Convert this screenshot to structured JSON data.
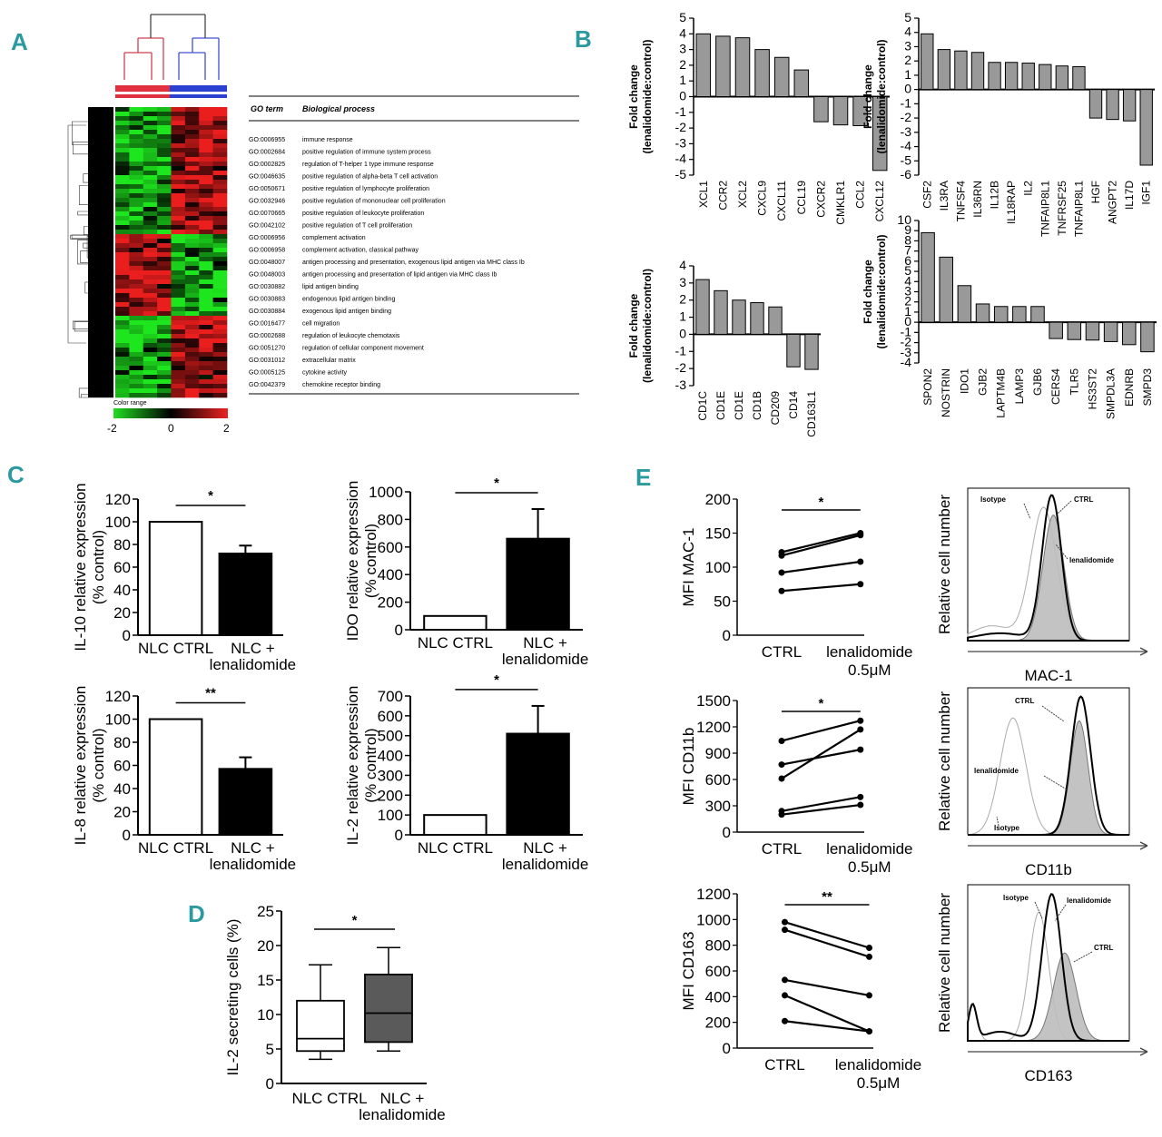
{
  "panel_labels": {
    "a": "A",
    "b": "B",
    "c": "C",
    "d": "D",
    "e": "E"
  },
  "panel_a": {
    "go_header": {
      "term": "GO term",
      "process": "Biological process"
    },
    "go_terms": [
      {
        "id": "GO:0006955",
        "process": "immune response"
      },
      {
        "id": "GO:0002684",
        "process": "positive regulation of immune system process"
      },
      {
        "id": "GO:0002825",
        "process": "regulation of T-helper 1 type immune response"
      },
      {
        "id": "GO:0046635",
        "process": "positive regulation of alpha-beta T cell activation"
      },
      {
        "id": "GO:0050671",
        "process": "positive regulation of lymphocyte proliferation"
      },
      {
        "id": "GO:0032946",
        "process": "positive regulation of mononuclear cell proliferation"
      },
      {
        "id": "GO:0070665",
        "process": "positive regulation of leukocyte proliferation"
      },
      {
        "id": "GO:0042102",
        "process": "positive regulation of T cell proliferation"
      },
      {
        "id": "GO:0006956",
        "process": "complement activation"
      },
      {
        "id": "GO:0006958",
        "process": "complement activation, classical pathway"
      },
      {
        "id": "GO:0048007",
        "process": "antigen processing and presentation, exogenous lipid antigen via MHC class Ib"
      },
      {
        "id": "GO:0048003",
        "process": "antigen processing and presentation of lipid antigen via MHC class Ib"
      },
      {
        "id": "GO:0030882",
        "process": "lipid antigen binding"
      },
      {
        "id": "GO:0030883",
        "process": "endogenous lipid antigen binding"
      },
      {
        "id": "GO:0030884",
        "process": "exogenous lipid antigen binding"
      },
      {
        "id": "GO:0016477",
        "process": "cell migration"
      },
      {
        "id": "GO:0002688",
        "process": "regulation of leukocyte chemotaxis"
      },
      {
        "id": "GO:0051270",
        "process": "regulation of cellular component movement"
      },
      {
        "id": "GO:0031012",
        "process": "extracellular matrix"
      },
      {
        "id": "GO:0005125",
        "process": "cytokine activity"
      },
      {
        "id": "GO:0042379",
        "process": "chemokine receptor binding"
      }
    ],
    "color_range": {
      "title": "Color range",
      "ticks": [
        "-2",
        "0",
        "2"
      ],
      "low": "#22dd22",
      "mid": "#000000",
      "high": "#ee2222"
    },
    "group_colors": {
      "ctrl": "#e03040",
      "len": "#2a40d0"
    }
  },
  "chart_data": [
    {
      "id": "b1",
      "type": "bar",
      "ylabel": "Fold change (lenalidomide:control)",
      "ylim": [
        -5,
        5
      ],
      "categories": [
        "XCL1",
        "CCR2",
        "XCL2",
        "CXCL9",
        "CXCL11",
        "CCL19",
        "CXCR2",
        "CMKLR1",
        "CCL2",
        "CXCL12"
      ],
      "values": [
        4.0,
        3.85,
        3.75,
        3.0,
        2.5,
        1.7,
        -1.6,
        -1.8,
        -1.85,
        -4.7
      ]
    },
    {
      "id": "b2",
      "type": "bar",
      "ylabel": "Fold change (lenalidomide:control)",
      "ylim": [
        -6,
        5
      ],
      "categories": [
        "CSF2",
        "IL3RA",
        "TNFSF4",
        "IL36RN",
        "IL12B",
        "IL18RAP",
        "IL2",
        "TNFAIP8L1",
        "TNFRSF25",
        "TNFAIP8L1",
        "HGF",
        "ANGPT2",
        "IL17D",
        "IGF1"
      ],
      "values": [
        3.9,
        2.8,
        2.7,
        2.6,
        1.9,
        1.9,
        1.85,
        1.75,
        1.65,
        1.6,
        -2.0,
        -2.1,
        -2.2,
        -5.3
      ]
    },
    {
      "id": "b3",
      "type": "bar",
      "ylabel": "Fold change (lenalidomide:control)",
      "ylim": [
        -3,
        4
      ],
      "categories": [
        "CD1C",
        "CD1E",
        "CD1E",
        "CD1B",
        "CD209",
        "CD14",
        "CD163L1"
      ],
      "values": [
        3.2,
        2.55,
        2.0,
        1.85,
        1.6,
        -1.9,
        -2.05
      ]
    },
    {
      "id": "b4",
      "type": "bar",
      "ylabel": "Fold change (lenalidomide:control)",
      "ylim": [
        -4,
        10
      ],
      "categories": [
        "SPON2",
        "NOSTRIN",
        "IDO1",
        "GJB2",
        "LAPTM4B",
        "LAMP3",
        "GJB6",
        "CERS4",
        "TLR5",
        "HS3ST2",
        "SMPDL3A",
        "EDNRB",
        "SMPD3"
      ],
      "values": [
        8.8,
        6.4,
        3.6,
        1.8,
        1.55,
        1.55,
        1.55,
        -1.6,
        -1.7,
        -1.75,
        -1.9,
        -2.2,
        -2.9
      ]
    },
    {
      "id": "c1",
      "type": "bar",
      "ylabel": "IL-10 relative expression (% control)",
      "ylim": [
        0,
        120
      ],
      "categories": [
        "NLC CTRL",
        "NLC + lenalidomide"
      ],
      "values": [
        100,
        72
      ],
      "errors": [
        0,
        7
      ],
      "significance": "*"
    },
    {
      "id": "c2",
      "type": "bar",
      "ylabel": "IDO relative expression (% control)",
      "ylim": [
        0,
        1000
      ],
      "categories": [
        "NLC CTRL",
        "NLC + lenalidomide"
      ],
      "values": [
        100,
        660
      ],
      "errors": [
        0,
        215
      ],
      "significance": "*"
    },
    {
      "id": "c3",
      "type": "bar",
      "ylabel": "IL-8 relative expression (% control)",
      "ylim": [
        0,
        120
      ],
      "categories": [
        "NLC CTRL",
        "NLC + lenalidomide"
      ],
      "values": [
        100,
        57
      ],
      "errors": [
        0,
        10
      ],
      "significance": "**"
    },
    {
      "id": "c4",
      "type": "bar",
      "ylabel": "IL-2 relative expression (% control)",
      "ylim": [
        0,
        700
      ],
      "categories": [
        "NLC CTRL",
        "NLC + lenalidomide"
      ],
      "values": [
        100,
        510
      ],
      "errors": [
        0,
        140
      ],
      "significance": "*"
    },
    {
      "id": "d",
      "type": "box",
      "ylabel": "IL-2 secreting cells (%)",
      "ylim": [
        0,
        25
      ],
      "categories": [
        "NLC CTRL",
        "NLC + lenalidomide"
      ],
      "boxes": [
        {
          "min": 3.5,
          "q1": 4.7,
          "median": 6.5,
          "q3": 12,
          "max": 17.2
        },
        {
          "min": 4.7,
          "q1": 6,
          "median": 10.2,
          "q3": 15.8,
          "max": 19.7
        }
      ],
      "significance": "*"
    },
    {
      "id": "e1",
      "type": "line",
      "ylabel": "MFI MAC-1",
      "ylim": [
        0,
        200
      ],
      "categories": [
        "CTRL",
        "lenalidomide 0.5μM"
      ],
      "series": [
        {
          "values": [
            122,
            150
          ]
        },
        {
          "values": [
            117,
            147
          ]
        },
        {
          "values": [
            92,
            108
          ]
        },
        {
          "values": [
            65,
            75
          ]
        }
      ],
      "significance": "*"
    },
    {
      "id": "e2",
      "type": "line",
      "ylabel": "MFI CD11b",
      "ylim": [
        0,
        1500
      ],
      "categories": [
        "CTRL",
        "lenalidomide 0.5μM"
      ],
      "series": [
        {
          "values": [
            1040,
            1270
          ]
        },
        {
          "values": [
            770,
            940
          ]
        },
        {
          "values": [
            610,
            1170
          ]
        },
        {
          "values": [
            240,
            400
          ]
        },
        {
          "values": [
            200,
            310
          ]
        }
      ],
      "significance": "*"
    },
    {
      "id": "e3",
      "type": "line",
      "ylabel": "MFI CD163",
      "ylim": [
        0,
        1200
      ],
      "categories": [
        "CTRL",
        "lenalidomide 0.5μM"
      ],
      "series": [
        {
          "values": [
            980,
            780
          ]
        },
        {
          "values": [
            920,
            710
          ]
        },
        {
          "values": [
            530,
            410
          ]
        },
        {
          "values": [
            410,
            130
          ]
        },
        {
          "values": [
            210,
            130
          ]
        }
      ],
      "significance": "**"
    }
  ],
  "panel_e_hist": [
    {
      "xlabel": "MAC-1",
      "ylabel": "Relative cell number",
      "labels": [
        "Isotype",
        "CTRL",
        "lenalidomide"
      ]
    },
    {
      "xlabel": "CD11b",
      "ylabel": "Relative cell number",
      "labels": [
        "CTRL",
        "lenalidomide",
        "Isotype"
      ]
    },
    {
      "xlabel": "CD163",
      "ylabel": "Relative cell number",
      "labels": [
        "Isotype",
        "lenalidomide",
        "CTRL"
      ]
    }
  ],
  "colors": {
    "bar_gray": "#999999",
    "ctrl_fill": "#ffffff",
    "len_fill": "#000000",
    "box_len": "#5a5a5a",
    "accent": "#2a9aa0"
  }
}
